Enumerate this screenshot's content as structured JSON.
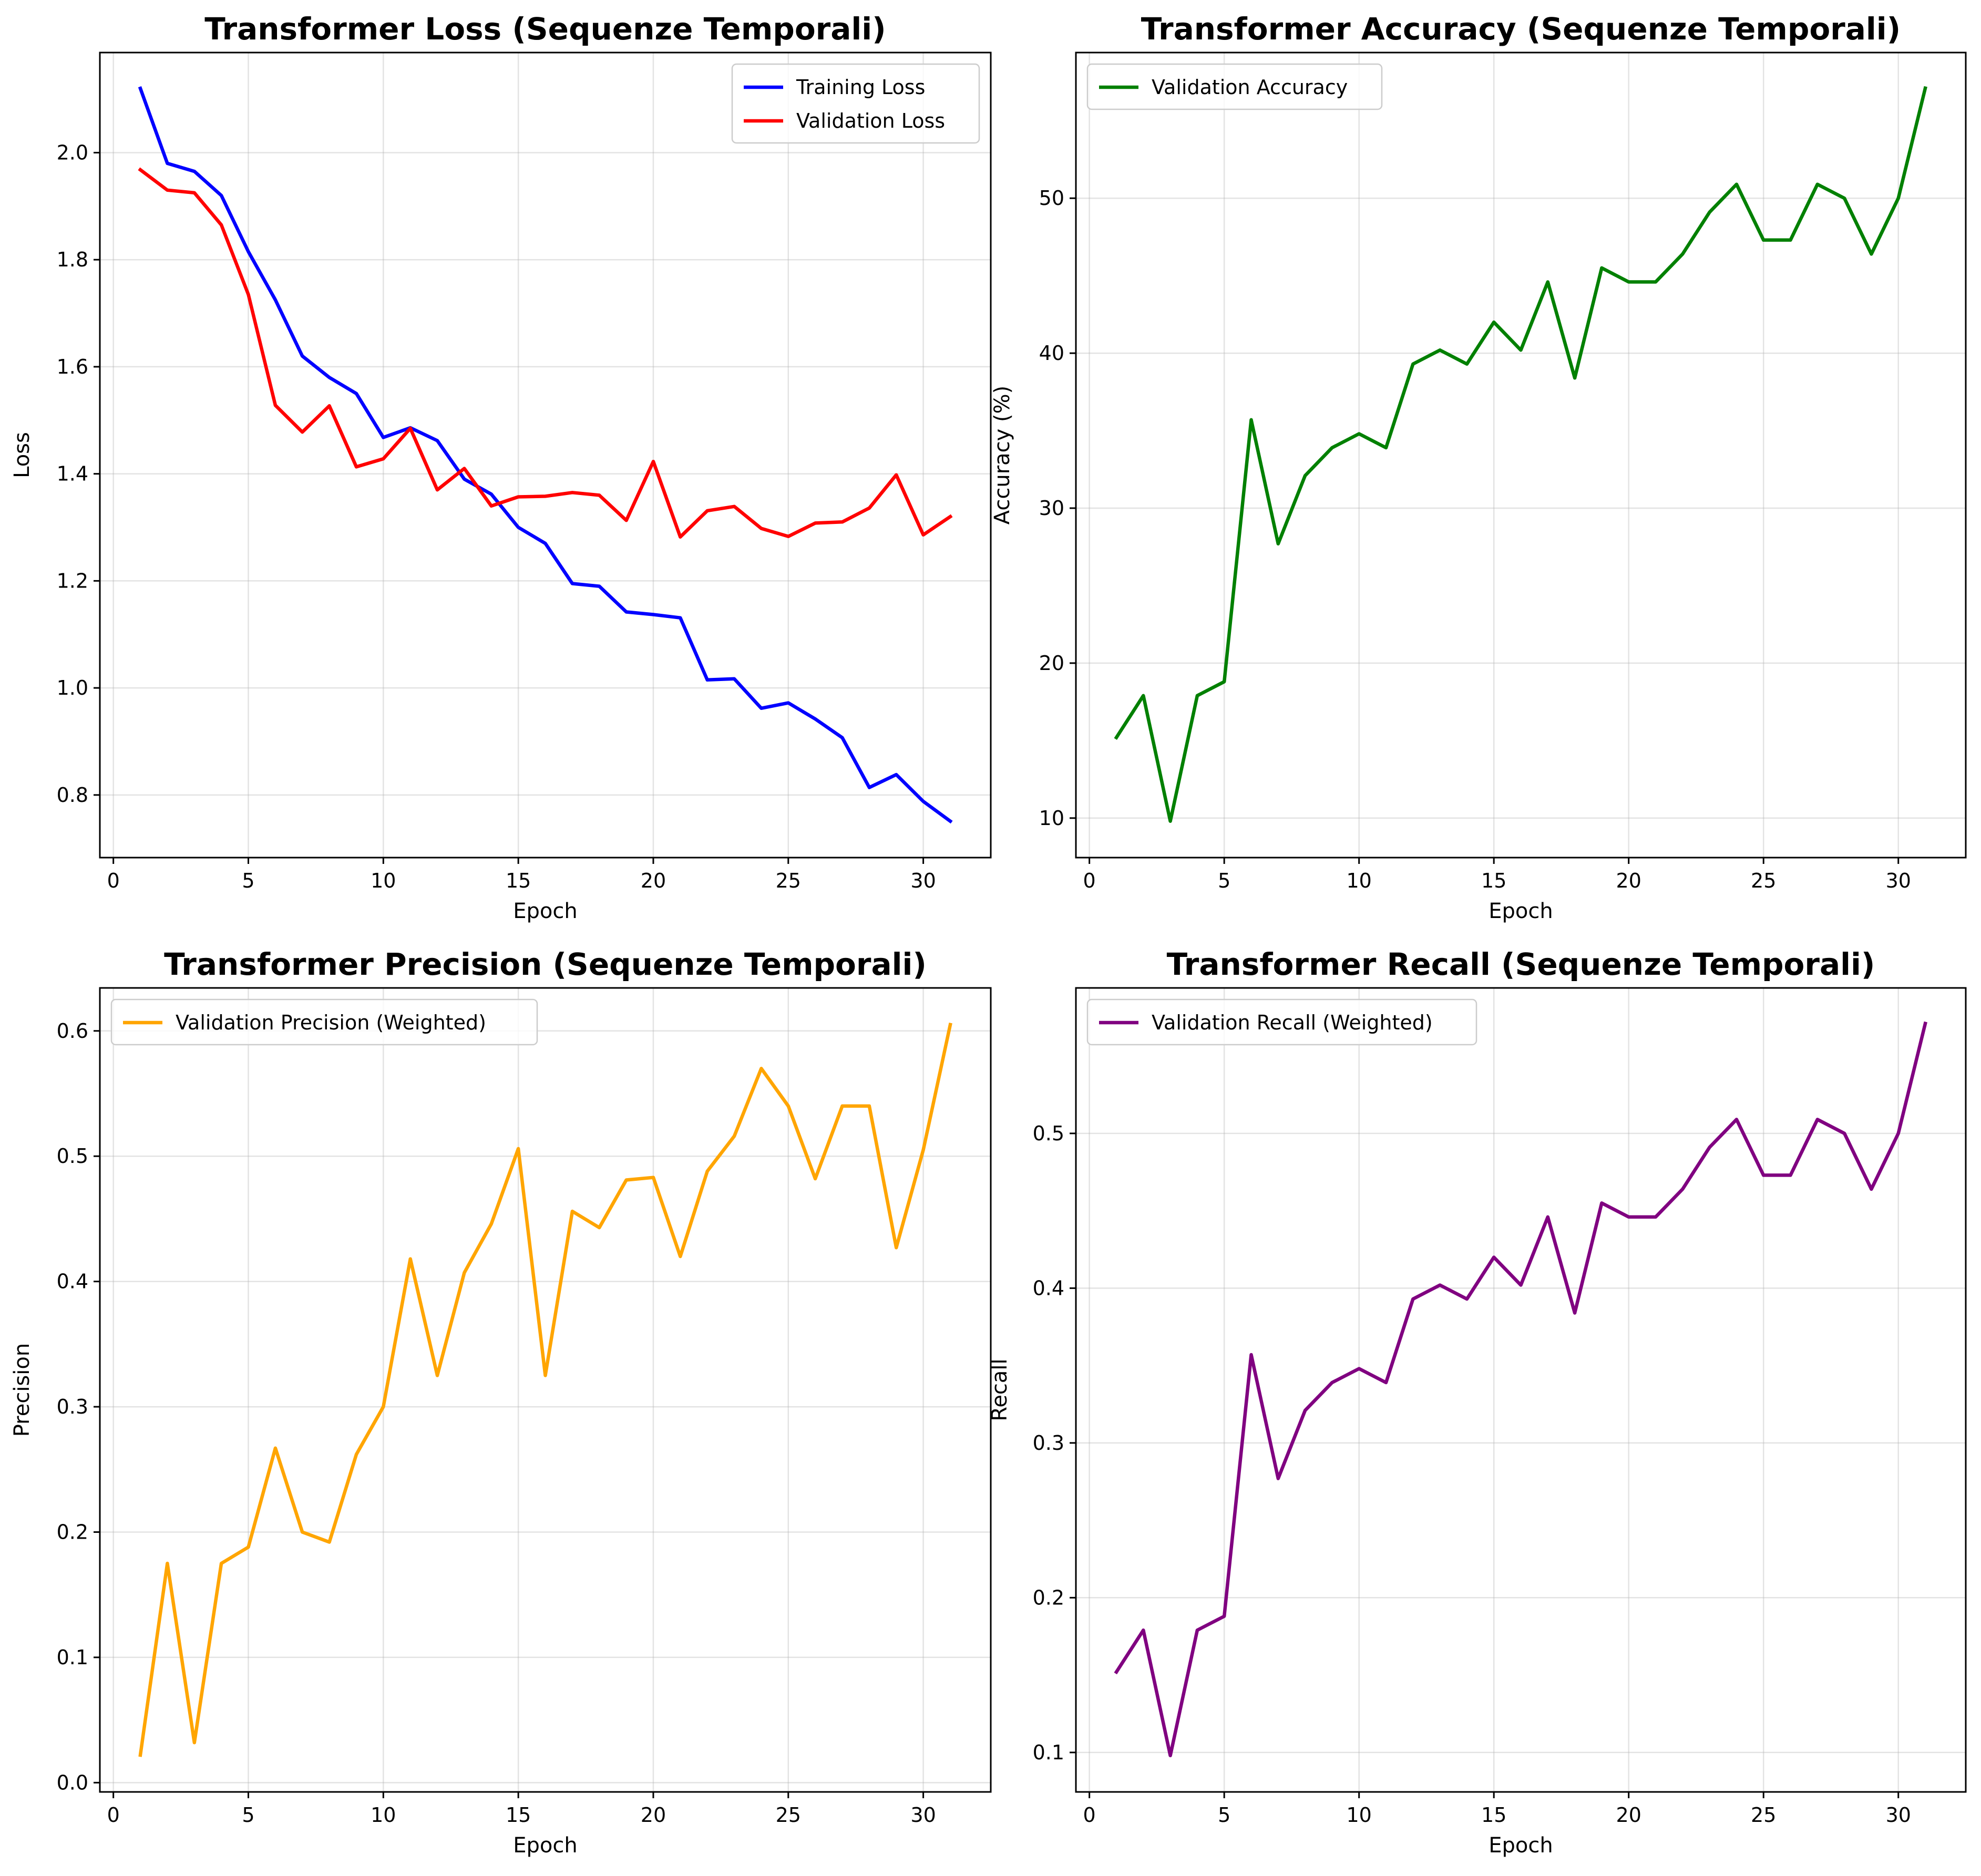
{
  "chart_data": [
    {
      "id": "loss",
      "type": "line",
      "title": "Transformer Loss (Sequenze Temporali)",
      "xlabel": "Epoch",
      "ylabel": "Loss",
      "xlim": [
        -0.5,
        32.5
      ],
      "ylim": [
        0.683,
        2.187
      ],
      "xticks": [
        0,
        5,
        10,
        15,
        20,
        25,
        30
      ],
      "yticks": [
        0.8,
        1.0,
        1.2,
        1.4,
        1.6,
        1.8,
        2.0
      ],
      "ytick_labels": [
        "0.8",
        "1.0",
        "1.2",
        "1.4",
        "1.6",
        "1.8",
        "2.0"
      ],
      "grid": true,
      "legend": "top-right",
      "x": [
        1,
        2,
        3,
        4,
        5,
        6,
        7,
        8,
        9,
        10,
        11,
        12,
        13,
        14,
        15,
        16,
        17,
        18,
        19,
        20,
        21,
        22,
        23,
        24,
        25,
        26,
        27,
        28,
        29,
        30,
        31
      ],
      "series": [
        {
          "name": "Training Loss",
          "color": "#0000ff",
          "values": [
            2.12,
            1.98,
            1.965,
            1.92,
            1.815,
            1.725,
            1.62,
            1.58,
            1.55,
            1.468,
            1.486,
            1.462,
            1.39,
            1.362,
            1.3,
            1.27,
            1.195,
            1.19,
            1.142,
            1.137,
            1.131,
            1.015,
            1.017,
            0.962,
            0.972,
            0.942,
            0.907,
            0.814,
            0.838,
            0.788,
            0.751
          ]
        },
        {
          "name": "Validation Loss",
          "color": "#ff0000",
          "values": [
            1.968,
            1.93,
            1.925,
            1.865,
            1.735,
            1.528,
            1.478,
            1.527,
            1.413,
            1.428,
            1.485,
            1.37,
            1.41,
            1.34,
            1.357,
            1.358,
            1.365,
            1.36,
            1.313,
            1.423,
            1.282,
            1.331,
            1.339,
            1.298,
            1.283,
            1.308,
            1.31,
            1.336,
            1.398,
            1.286,
            1.32
          ]
        }
      ]
    },
    {
      "id": "accuracy",
      "type": "line",
      "title": "Transformer Accuracy (Sequenze Temporali)",
      "xlabel": "Epoch",
      "ylabel": "Accuracy (%)",
      "xlim": [
        -0.5,
        32.5
      ],
      "ylim": [
        7.45,
        59.4
      ],
      "xticks": [
        0,
        5,
        10,
        15,
        20,
        25,
        30
      ],
      "yticks": [
        10,
        20,
        30,
        40,
        50
      ],
      "ytick_labels": [
        "10",
        "20",
        "30",
        "40",
        "50"
      ],
      "grid": true,
      "legend": "top-left",
      "x": [
        1,
        2,
        3,
        4,
        5,
        6,
        7,
        8,
        9,
        10,
        11,
        12,
        13,
        14,
        15,
        16,
        17,
        18,
        19,
        20,
        21,
        22,
        23,
        24,
        25,
        26,
        27,
        28,
        29,
        30,
        31
      ],
      "series": [
        {
          "name": "Validation Accuracy",
          "color": "#008000",
          "values": [
            15.2,
            17.9,
            9.8,
            17.9,
            18.8,
            35.7,
            27.7,
            32.1,
            33.9,
            34.8,
            33.9,
            39.3,
            40.2,
            39.3,
            42.0,
            40.2,
            44.6,
            38.4,
            45.5,
            44.6,
            44.6,
            46.4,
            49.1,
            50.9,
            47.3,
            47.3,
            50.9,
            50.0,
            46.4,
            50.0,
            57.1
          ]
        }
      ]
    },
    {
      "id": "precision",
      "type": "line",
      "title": "Transformer Precision (Sequenze Temporali)",
      "xlabel": "Epoch",
      "ylabel": "Precision",
      "xlim": [
        -0.5,
        32.5
      ],
      "ylim": [
        -0.0074,
        0.6343
      ],
      "xticks": [
        0,
        5,
        10,
        15,
        20,
        25,
        30
      ],
      "yticks": [
        0.0,
        0.1,
        0.2,
        0.3,
        0.4,
        0.5,
        0.6
      ],
      "ytick_labels": [
        "0.0",
        "0.1",
        "0.2",
        "0.3",
        "0.4",
        "0.5",
        "0.6"
      ],
      "grid": true,
      "legend": "top-left",
      "x": [
        1,
        2,
        3,
        4,
        5,
        6,
        7,
        8,
        9,
        10,
        11,
        12,
        13,
        14,
        15,
        16,
        17,
        18,
        19,
        20,
        21,
        22,
        23,
        24,
        25,
        26,
        27,
        28,
        29,
        30,
        31
      ],
      "series": [
        {
          "name": "Validation Precision (Weighted)",
          "color": "#ffa500",
          "values": [
            0.022,
            0.175,
            0.032,
            0.175,
            0.188,
            0.267,
            0.2,
            0.192,
            0.262,
            0.3,
            0.418,
            0.325,
            0.407,
            0.446,
            0.506,
            0.325,
            0.456,
            0.443,
            0.481,
            0.483,
            0.42,
            0.488,
            0.516,
            0.57,
            0.54,
            0.482,
            0.54,
            0.54,
            0.427,
            0.505,
            0.605
          ]
        }
      ]
    },
    {
      "id": "recall",
      "type": "line",
      "title": "Transformer Recall (Sequenze Temporali)",
      "xlabel": "Epoch",
      "ylabel": "Recall",
      "xlim": [
        -0.5,
        32.5
      ],
      "ylim": [
        0.0745,
        0.594
      ],
      "xticks": [
        0,
        5,
        10,
        15,
        20,
        25,
        30
      ],
      "yticks": [
        0.1,
        0.2,
        0.3,
        0.4,
        0.5
      ],
      "ytick_labels": [
        "0.1",
        "0.2",
        "0.3",
        "0.4",
        "0.5"
      ],
      "grid": true,
      "legend": "top-left",
      "x": [
        1,
        2,
        3,
        4,
        5,
        6,
        7,
        8,
        9,
        10,
        11,
        12,
        13,
        14,
        15,
        16,
        17,
        18,
        19,
        20,
        21,
        22,
        23,
        24,
        25,
        26,
        27,
        28,
        29,
        30,
        31
      ],
      "series": [
        {
          "name": "Validation Recall (Weighted)",
          "color": "#800080",
          "values": [
            0.152,
            0.179,
            0.098,
            0.179,
            0.188,
            0.357,
            0.277,
            0.321,
            0.339,
            0.348,
            0.339,
            0.393,
            0.402,
            0.393,
            0.42,
            0.402,
            0.446,
            0.384,
            0.455,
            0.446,
            0.446,
            0.464,
            0.491,
            0.509,
            0.473,
            0.473,
            0.509,
            0.5,
            0.464,
            0.5,
            0.571
          ]
        }
      ]
    }
  ]
}
